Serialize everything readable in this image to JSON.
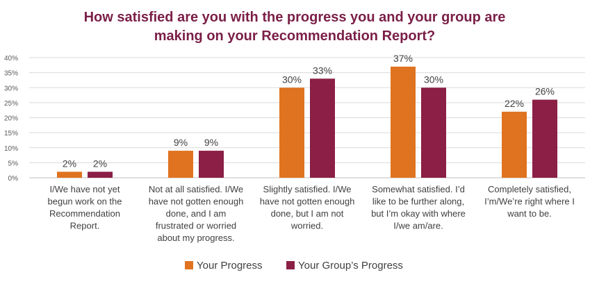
{
  "chart_data": {
    "type": "bar",
    "title": "How satisfied are you with the progress you and your group are making on your Recommendation Report?",
    "title_lines": [
      "How satisfied are you with the progress you and your group are",
      "making on your Recommendation Report?"
    ],
    "categories": [
      "I/We have not yet begun work on the Recommendation Report.",
      "Not at all satisfied. I/We have not gotten enough done, and I am frustrated or worried about my progress.",
      "Slightly satisfied. I/We have not gotten enough done, but I am not worried.",
      "Somewhat satisfied. I'd like to be further along, but I'm okay with where I/we am/are.",
      "Completely satisfied, I'm/We're right where I want to be."
    ],
    "category_lines": [
      [
        "I/We have not yet",
        "begun work on the",
        "Recommendation",
        "Report."
      ],
      [
        "Not at all satisfied. I/We",
        "have not gotten enough",
        "done, and I am",
        "frustrated or worried",
        "about my progress."
      ],
      [
        "Slightly satisfied. I/We",
        "have not gotten enough",
        "done, but I am not",
        "worried."
      ],
      [
        "Somewhat satisfied. I’d",
        "like to be further along,",
        "but I’m okay with where",
        "I/we am/are."
      ],
      [
        "Completely satisfied,",
        "I’m/We’re right where I",
        "want to be."
      ]
    ],
    "series": [
      {
        "name": "Your Progress",
        "color": "#e07320",
        "values": [
          2,
          9,
          30,
          37,
          22
        ],
        "labels": [
          "2%",
          "9%",
          "30%",
          "37%",
          "22%"
        ]
      },
      {
        "name": "Your Group’s Progress",
        "color": "#8b1f45",
        "values": [
          2,
          9,
          33,
          30,
          26
        ],
        "labels": [
          "2%",
          "9%",
          "33%",
          "30%",
          "26%"
        ]
      }
    ],
    "ylim": [
      0,
      40
    ],
    "yticks": [
      "0%",
      "5%",
      "10%",
      "15%",
      "20%",
      "25%",
      "30%",
      "35%",
      "40%"
    ],
    "grid": true,
    "legend_position": "bottom"
  }
}
